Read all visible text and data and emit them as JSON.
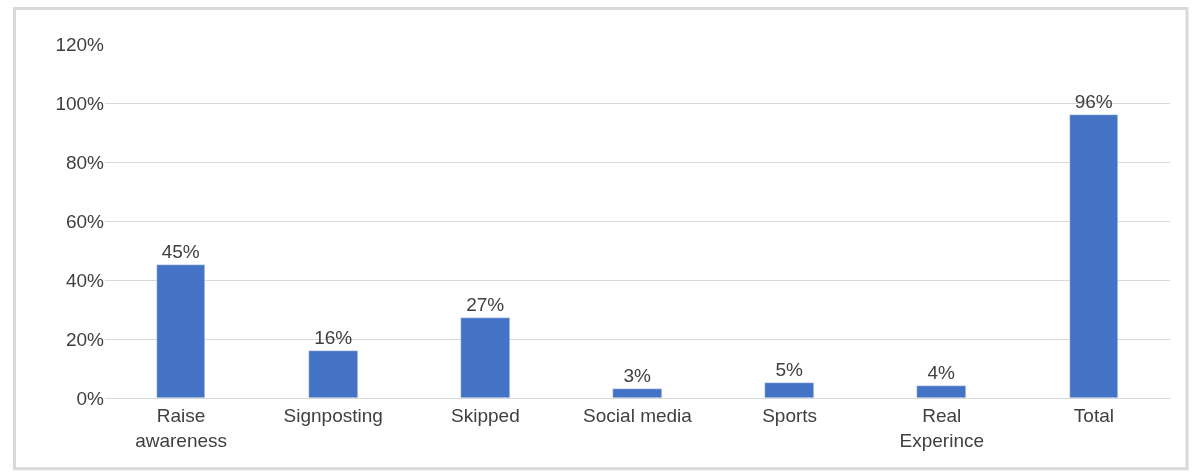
{
  "chart_data": {
    "type": "bar",
    "categories": [
      "Raise awareness",
      "Signposting",
      "Skipped",
      "Social media",
      "Sports",
      "Real Experince",
      "Total"
    ],
    "values": [
      45,
      16,
      27,
      3,
      5,
      4,
      96
    ],
    "value_labels": [
      "45%",
      "16%",
      "27%",
      "3%",
      "5%",
      "4%",
      "96%"
    ],
    "color": "#4472c4",
    "ylim": [
      0,
      120
    ],
    "yticks": [
      {
        "value": 0,
        "label": "0%"
      },
      {
        "value": 20,
        "label": "20%"
      },
      {
        "value": 40,
        "label": "40%"
      },
      {
        "value": 60,
        "label": "60%"
      },
      {
        "value": 80,
        "label": "80%"
      },
      {
        "value": 100,
        "label": "100%"
      },
      {
        "value": 120,
        "label": "120%"
      }
    ],
    "grid": "y",
    "legend": false
  }
}
